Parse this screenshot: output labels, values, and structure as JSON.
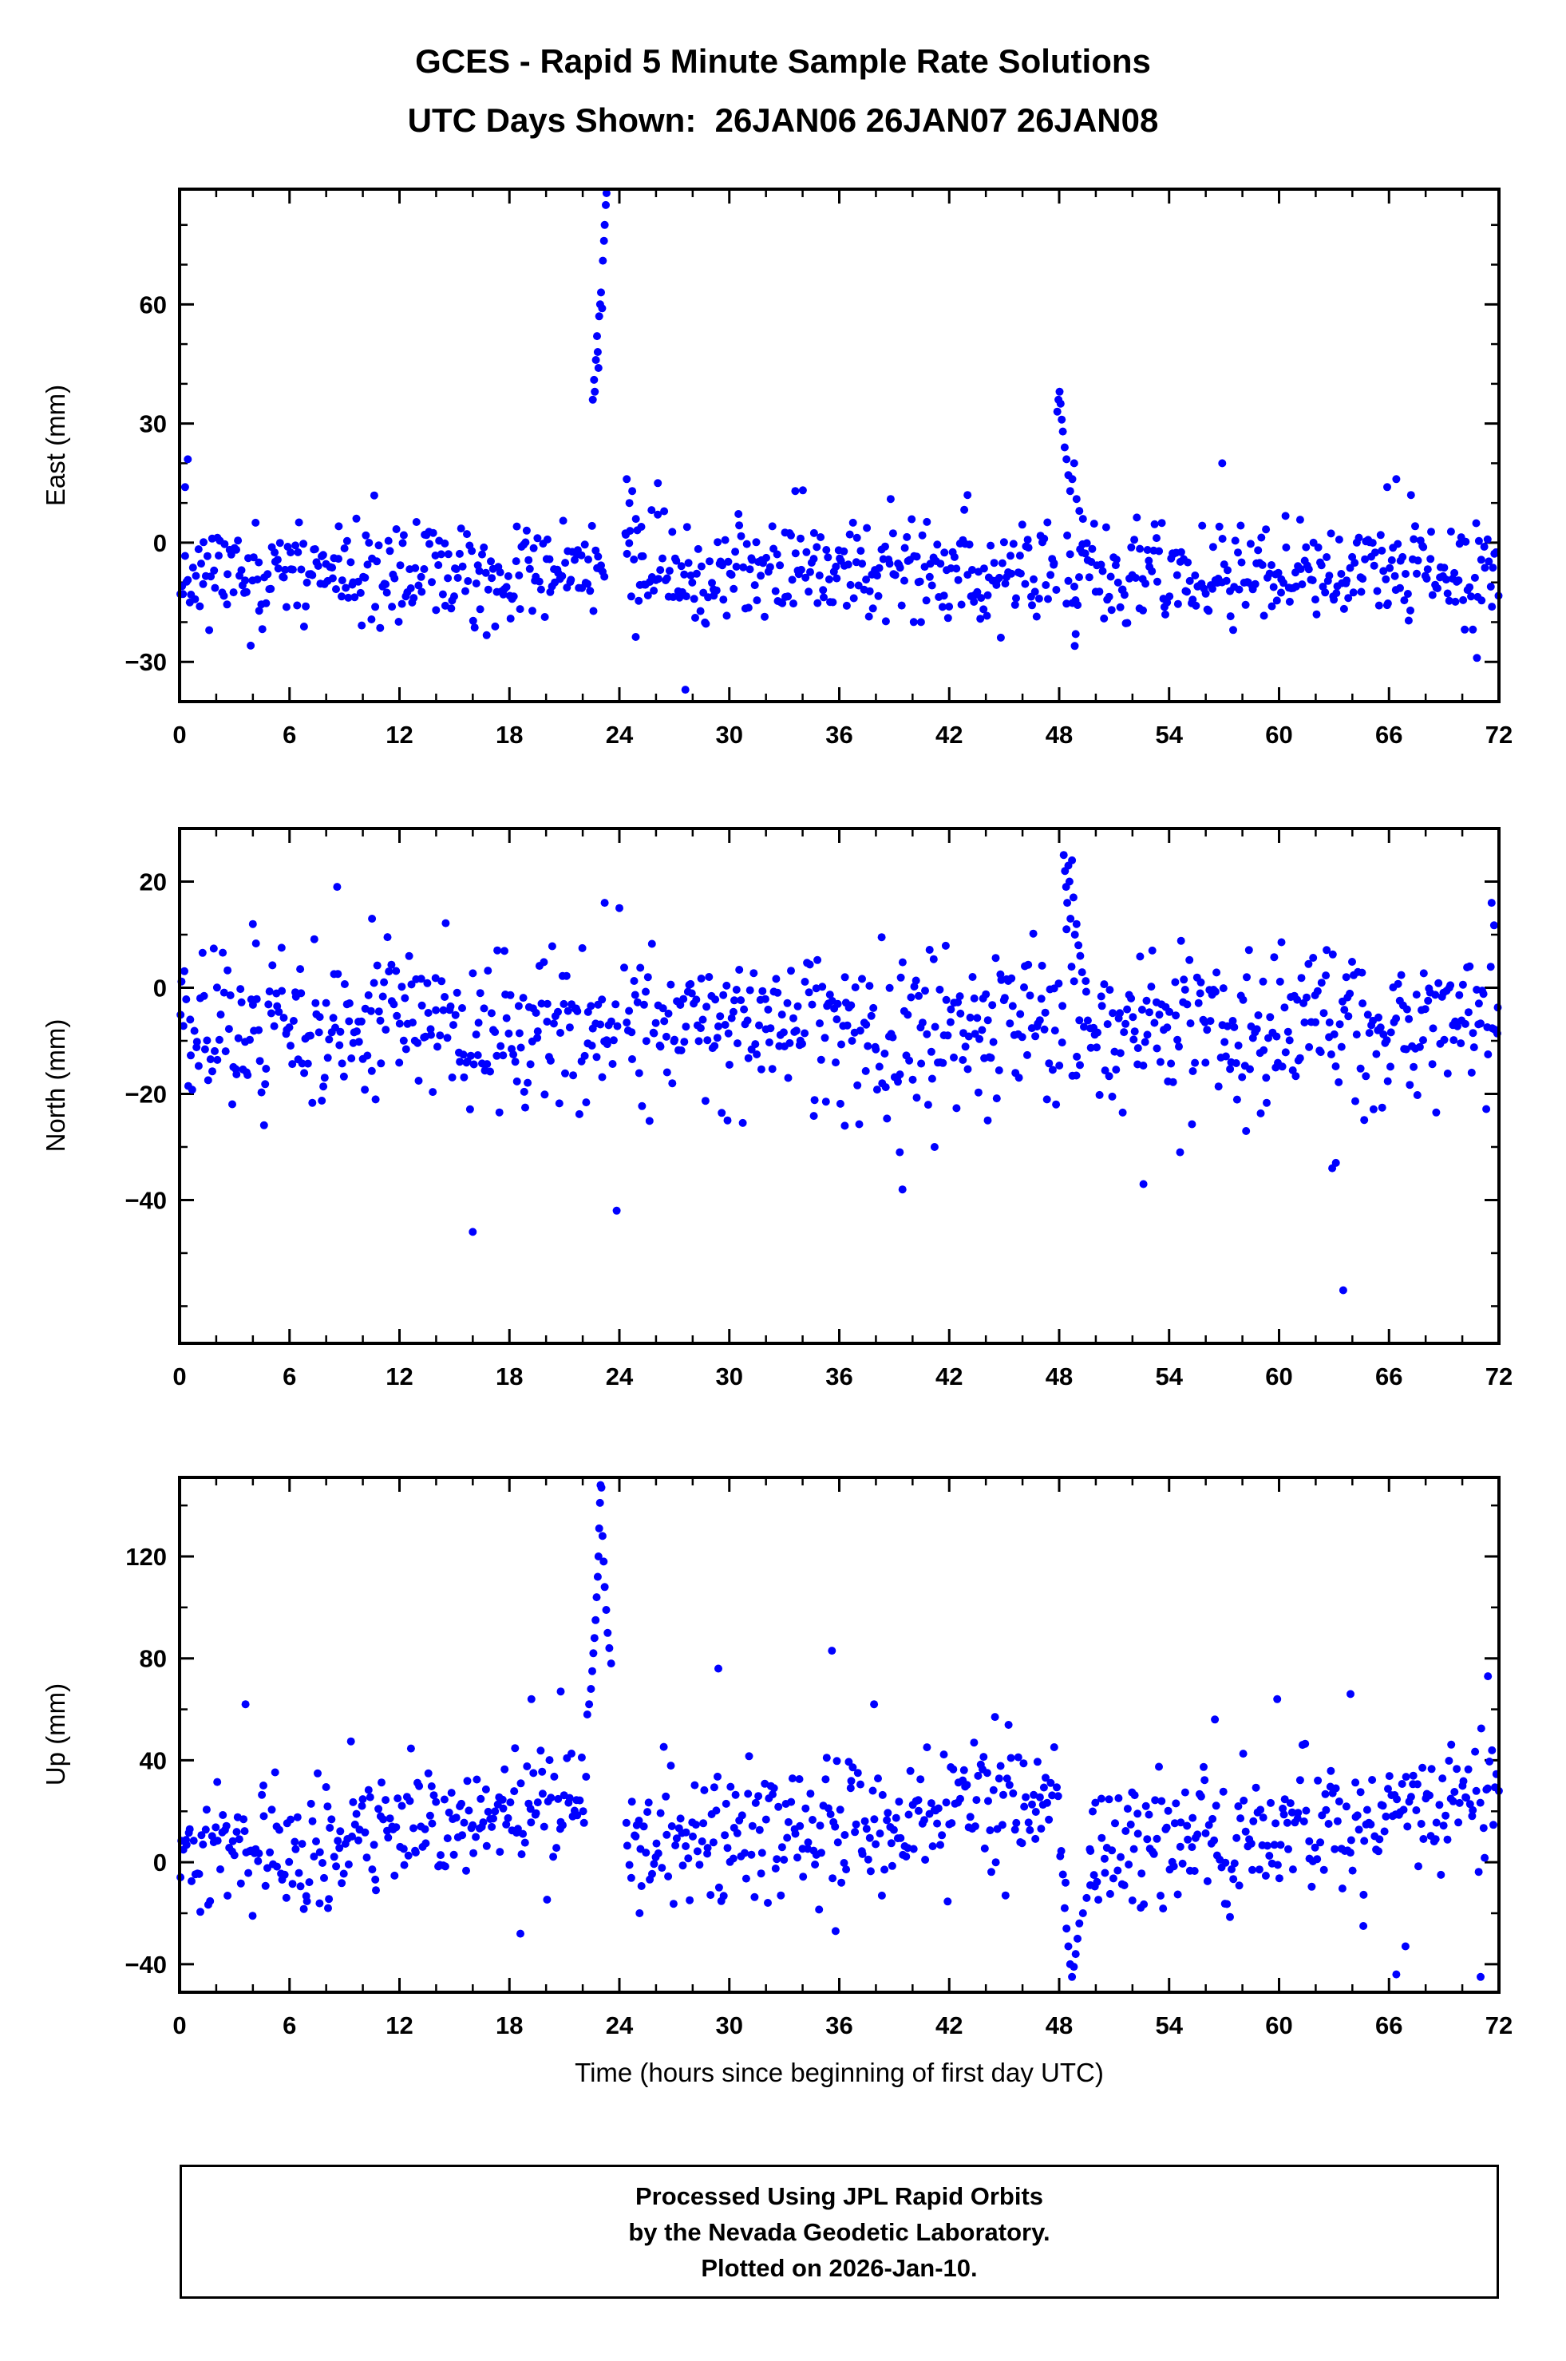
{
  "title": "GCES - Rapid 5 Minute Sample Rate Solutions",
  "subtitle": "UTC Days Shown:  26JAN06 26JAN07 26JAN08",
  "footer": {
    "line1": "Processed Using JPL Rapid Orbits",
    "line2": "by the Nevada Geodetic Laboratory.",
    "line3": "Plotted on 2026-Jan-10."
  },
  "colors": {
    "point": "#0000ff",
    "axis": "#000000",
    "background": "#ffffff"
  },
  "chart_data": {
    "type": "scatter",
    "xlabel": "Time (hours since beginning of first day UTC)",
    "xlim": [
      0,
      72
    ],
    "xticks_major": [
      0,
      6,
      12,
      18,
      24,
      30,
      36,
      42,
      48,
      54,
      60,
      66,
      72
    ],
    "xticks_minor_step": 2,
    "legend": "none",
    "grid": false,
    "panels": [
      {
        "name": "east-panel",
        "ylabel": "East (mm)",
        "ylim": [
          -40,
          89
        ],
        "yticks": [
          -30,
          0,
          30,
          60
        ],
        "yticks_minor_step": 10,
        "cloud": {
          "n": 830,
          "seed": 11,
          "mean": -7.5,
          "std": 6.2,
          "clip": [
            -26,
            14
          ],
          "slope": 0
        },
        "gaps": [
          [
            23.3,
            24.3
          ],
          [
            47.85,
            48.3
          ]
        ],
        "anomaly_points": [
          [
            22.55,
            36
          ],
          [
            22.62,
            41
          ],
          [
            22.66,
            38
          ],
          [
            22.72,
            46
          ],
          [
            22.78,
            52
          ],
          [
            22.82,
            48
          ],
          [
            22.86,
            44
          ],
          [
            22.9,
            57
          ],
          [
            22.95,
            60
          ],
          [
            23.0,
            63
          ],
          [
            23.06,
            59
          ],
          [
            23.1,
            71
          ],
          [
            23.16,
            76
          ],
          [
            23.2,
            80
          ],
          [
            23.26,
            85
          ],
          [
            23.3,
            88
          ],
          [
            24.4,
            16
          ],
          [
            24.55,
            10
          ],
          [
            24.7,
            13
          ],
          [
            24.9,
            6
          ],
          [
            25.2,
            4
          ],
          [
            24.35,
            2
          ],
          [
            47.9,
            33
          ],
          [
            47.96,
            36
          ],
          [
            48.02,
            38
          ],
          [
            48.08,
            35
          ],
          [
            48.14,
            31
          ],
          [
            48.2,
            28
          ],
          [
            48.3,
            24
          ],
          [
            48.4,
            21
          ],
          [
            48.5,
            17
          ],
          [
            48.6,
            13
          ],
          [
            48.72,
            16
          ],
          [
            48.82,
            20
          ],
          [
            48.95,
            11
          ],
          [
            49.1,
            8
          ],
          [
            49.3,
            6
          ],
          [
            48.85,
            -26
          ],
          [
            48.9,
            -23
          ],
          [
            27.6,
            -37
          ],
          [
            0.45,
            21
          ],
          [
            56.9,
            20
          ],
          [
            70.8,
            -29
          ],
          [
            0.3,
            14
          ],
          [
            26.1,
            15
          ],
          [
            33.6,
            13
          ],
          [
            43.0,
            12
          ],
          [
            65.9,
            14
          ],
          [
            66.4,
            16
          ],
          [
            67.2,
            12
          ]
        ]
      },
      {
        "name": "north-panel",
        "ylabel": "North (mm)",
        "ylim": [
          -67,
          30
        ],
        "yticks": [
          -40,
          -20,
          0,
          20
        ],
        "yticks_minor_step": 10,
        "cloud": {
          "n": 840,
          "seed": 22,
          "mean": -7,
          "std": 7.2,
          "clip": [
            -26,
            13
          ],
          "slope": 0
        },
        "gaps": [
          [
            23.95,
            24.25
          ],
          [
            48.2,
            48.55
          ]
        ],
        "anomaly_points": [
          [
            16.0,
            -46
          ],
          [
            23.85,
            -42
          ],
          [
            63.5,
            -57
          ],
          [
            39.45,
            -38
          ],
          [
            39.3,
            -31
          ],
          [
            52.6,
            -37
          ],
          [
            54.6,
            -31
          ],
          [
            41.2,
            -30
          ],
          [
            62.9,
            -34
          ],
          [
            63.1,
            -33
          ],
          [
            58.2,
            -27
          ],
          [
            44.1,
            -25
          ],
          [
            36.3,
            -26
          ],
          [
            29.9,
            -25
          ],
          [
            48.25,
            25
          ],
          [
            48.32,
            22
          ],
          [
            48.38,
            19
          ],
          [
            48.44,
            16
          ],
          [
            48.5,
            23
          ],
          [
            48.56,
            20
          ],
          [
            48.62,
            13
          ],
          [
            48.7,
            24
          ],
          [
            48.78,
            17
          ],
          [
            48.86,
            10
          ],
          [
            48.95,
            12
          ],
          [
            49.05,
            8
          ],
          [
            49.15,
            6
          ],
          [
            48.4,
            11
          ],
          [
            8.6,
            19
          ],
          [
            23.2,
            16
          ],
          [
            71.6,
            16
          ],
          [
            10.5,
            13
          ],
          [
            24.0,
            15
          ],
          [
            4.0,
            12
          ]
        ]
      },
      {
        "name": "up-panel",
        "ylabel": "Up (mm)",
        "ylim": [
          -51,
          151
        ],
        "yticks": [
          -40,
          0,
          40,
          80,
          120
        ],
        "yticks_minor_step": 20,
        "cloud": {
          "n": 800,
          "seed": 33,
          "mean": 14,
          "std": 13,
          "clip": [
            -22,
            55
          ],
          "slope": 1.05
        },
        "gaps": [
          [
            22.2,
            24.3
          ],
          [
            48.25,
            49.6
          ]
        ],
        "anomaly_points": [
          [
            22.25,
            58
          ],
          [
            22.35,
            62
          ],
          [
            22.45,
            68
          ],
          [
            22.52,
            75
          ],
          [
            22.58,
            82
          ],
          [
            22.64,
            88
          ],
          [
            22.7,
            95
          ],
          [
            22.76,
            104
          ],
          [
            22.82,
            112
          ],
          [
            22.86,
            120
          ],
          [
            22.9,
            131
          ],
          [
            22.94,
            141
          ],
          [
            22.97,
            148
          ],
          [
            23.02,
            147
          ],
          [
            23.08,
            128
          ],
          [
            23.14,
            118
          ],
          [
            23.2,
            108
          ],
          [
            23.28,
            99
          ],
          [
            23.36,
            90
          ],
          [
            23.45,
            84
          ],
          [
            23.55,
            78
          ],
          [
            48.3,
            -18
          ],
          [
            48.4,
            -26
          ],
          [
            48.5,
            -33
          ],
          [
            48.6,
            -40
          ],
          [
            48.7,
            -45
          ],
          [
            48.8,
            -41
          ],
          [
            48.9,
            -36
          ],
          [
            49.0,
            -30
          ],
          [
            49.1,
            -24
          ],
          [
            49.3,
            -20
          ],
          [
            49.5,
            -14
          ],
          [
            49.7,
            -9
          ],
          [
            48.35,
            -8
          ],
          [
            49.9,
            -5
          ],
          [
            29.4,
            76
          ],
          [
            35.6,
            83
          ],
          [
            71.4,
            73
          ],
          [
            3.6,
            62
          ],
          [
            19.2,
            64
          ],
          [
            20.8,
            67
          ],
          [
            37.9,
            62
          ],
          [
            59.9,
            64
          ],
          [
            63.9,
            66
          ],
          [
            44.5,
            57
          ],
          [
            56.5,
            56
          ],
          [
            66.4,
            -44
          ],
          [
            71.0,
            -45
          ],
          [
            18.6,
            -28
          ],
          [
            35.8,
            -27
          ],
          [
            64.6,
            -25
          ],
          [
            66.9,
            -33
          ],
          [
            25.1,
            -20
          ],
          [
            8.1,
            -18
          ],
          [
            52.0,
            -15
          ]
        ]
      }
    ]
  }
}
